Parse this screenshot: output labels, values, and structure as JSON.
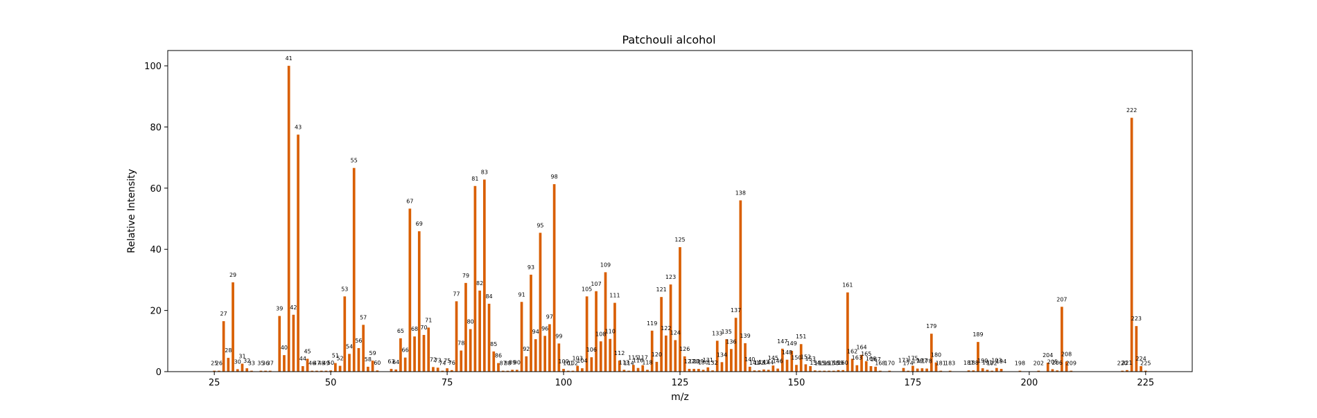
{
  "chart_data": {
    "type": "bar",
    "title": "Patchouli alcohol",
    "xlabel": "m/z",
    "ylabel": "Relative Intensity",
    "xlim": [
      15,
      235
    ],
    "ylim": [
      0,
      105
    ],
    "xticks": [
      25,
      50,
      75,
      100,
      125,
      150,
      175,
      200,
      225
    ],
    "yticks": [
      0,
      20,
      40,
      60,
      80,
      100
    ],
    "grid": false,
    "legend": "none",
    "colors": {
      "bar": "#d95f02",
      "bar_edge": "#ffffff",
      "axis": "#000000"
    },
    "x": [
      25,
      26,
      27,
      28,
      29,
      30,
      31,
      32,
      33,
      35,
      36,
      37,
      39,
      40,
      41,
      42,
      43,
      44,
      45,
      46,
      47,
      48,
      49,
      50,
      51,
      52,
      53,
      54,
      55,
      56,
      57,
      58,
      59,
      60,
      63,
      64,
      65,
      66,
      67,
      68,
      69,
      70,
      71,
      72,
      73,
      74,
      75,
      76,
      77,
      78,
      79,
      80,
      81,
      82,
      83,
      84,
      85,
      86,
      87,
      88,
      89,
      90,
      91,
      92,
      93,
      94,
      95,
      96,
      97,
      98,
      99,
      100,
      101,
      102,
      103,
      104,
      105,
      106,
      107,
      108,
      109,
      110,
      111,
      112,
      113,
      114,
      115,
      116,
      117,
      118,
      119,
      120,
      121,
      122,
      123,
      124,
      125,
      126,
      127,
      128,
      129,
      130,
      131,
      132,
      133,
      134,
      135,
      136,
      137,
      138,
      139,
      140,
      141,
      142,
      143,
      144,
      145,
      146,
      147,
      148,
      149,
      150,
      151,
      152,
      153,
      154,
      155,
      156,
      157,
      158,
      159,
      160,
      161,
      162,
      163,
      164,
      165,
      166,
      167,
      168,
      170,
      173,
      174,
      175,
      176,
      177,
      178,
      179,
      180,
      181,
      183,
      187,
      188,
      189,
      190,
      191,
      192,
      193,
      194,
      198,
      202,
      204,
      205,
      206,
      207,
      208,
      209,
      220,
      221,
      222,
      223,
      224,
      225
    ],
    "values": [
      0.3,
      0.3,
      16.5,
      4.5,
      29.2,
      0.8,
      2.6,
      1.1,
      0.3,
      0.3,
      0.3,
      0.3,
      18.2,
      5.4,
      100,
      18.6,
      77.5,
      1.8,
      4.2,
      0.3,
      0.3,
      0.3,
      0.3,
      0.4,
      2.8,
      1.9,
      24.6,
      5.8,
      66.6,
      7.7,
      15.3,
      1.6,
      3.6,
      0.4,
      0.9,
      0.7,
      10.9,
      4.6,
      53.3,
      11.5,
      45.9,
      12,
      14.4,
      1.5,
      1.3,
      0.3,
      1.1,
      0.5,
      23,
      6.9,
      29,
      13.9,
      60.7,
      26.5,
      62.8,
      22.2,
      6.6,
      2.8,
      0.3,
      0.3,
      0.6,
      0.6,
      22.8,
      5,
      31.7,
      10.6,
      45.4,
      11.7,
      15.5,
      61.3,
      9.2,
      0.9,
      0.3,
      0.3,
      1.9,
      1.1,
      24.6,
      4.7,
      26.3,
      9.9,
      32.5,
      10.7,
      22.5,
      3.6,
      0.6,
      0.3,
      2.2,
      1.2,
      2.1,
      0.6,
      13.4,
      3.2,
      24.4,
      11.8,
      28.5,
      10.3,
      40.7,
      5,
      0.9,
      0.9,
      0.9,
      0.6,
      1.4,
      0.4,
      10.1,
      3.1,
      10.6,
      7.4,
      17.6,
      56,
      9.3,
      1.6,
      0.4,
      0.4,
      0.7,
      0.6,
      2,
      1,
      7.5,
      3.9,
      6.8,
      2.2,
      9,
      2.4,
      1.8,
      0.4,
      0.3,
      0.3,
      0.3,
      0.3,
      0.5,
      0.5,
      25.9,
      4.2,
      2.1,
      5.5,
      3.4,
      1.8,
      1.6,
      0.3,
      0.3,
      1.2,
      0.3,
      1.9,
      1,
      1.1,
      1,
      12.4,
      3,
      0.3,
      0.3,
      0.4,
      0.4,
      9.7,
      1.1,
      0.6,
      0.3,
      1.2,
      0.9,
      0.3,
      0.3,
      2.9,
      0.8,
      0.4,
      21.2,
      3.3,
      0.3,
      0.3,
      0.5,
      83,
      14.9,
      1.8,
      0.3
    ],
    "data_labels": [
      "25",
      "26",
      "27",
      "28",
      "29",
      "30",
      "31",
      "32",
      "33",
      "35",
      "36",
      "37",
      "39",
      "40",
      "41",
      "42",
      "43",
      "44",
      "45",
      "46",
      "47",
      "48",
      "49",
      "50",
      "51",
      "52",
      "53",
      "54",
      "55",
      "56",
      "57",
      "58",
      "59",
      "60",
      "63",
      "64",
      "65",
      "66",
      "67",
      "68",
      "69",
      "70",
      "71",
      "72",
      "73",
      "74",
      "75",
      "76",
      "77",
      "78",
      "79",
      "80",
      "81",
      "82",
      "83",
      "84",
      "85",
      "86",
      "87",
      "88",
      "89",
      "90",
      "91",
      "92",
      "93",
      "94",
      "95",
      "96",
      "97",
      "98",
      "99",
      "100",
      "101",
      "102",
      "103",
      "104",
      "105",
      "106",
      "107",
      "108",
      "109",
      "110",
      "111",
      "112",
      "113",
      "114",
      "115",
      "116",
      "117",
      "118",
      "119",
      "120",
      "121",
      "122",
      "123",
      "124",
      "125",
      "126",
      "127",
      "128",
      "129",
      "130",
      "131",
      "132",
      "133",
      "134",
      "135",
      "136",
      "137",
      "138",
      "139",
      "140",
      "141",
      "142",
      "143",
      "144",
      "145",
      "146",
      "147",
      "148",
      "149",
      "150",
      "151",
      "152",
      "153",
      "154",
      "155",
      "156",
      "157",
      "158",
      "159",
      "160",
      "161",
      "162",
      "163",
      "164",
      "165",
      "166",
      "167",
      "168",
      "170",
      "173",
      "174",
      "175",
      "176",
      "177",
      "178",
      "179",
      "180",
      "181",
      "183",
      "187",
      "188",
      "189",
      "190",
      "191",
      "192",
      "193",
      "194",
      "198",
      "202",
      "204",
      "205",
      "206",
      "207",
      "208",
      "209",
      "220",
      "221",
      "222",
      "223",
      "224",
      "225"
    ]
  }
}
